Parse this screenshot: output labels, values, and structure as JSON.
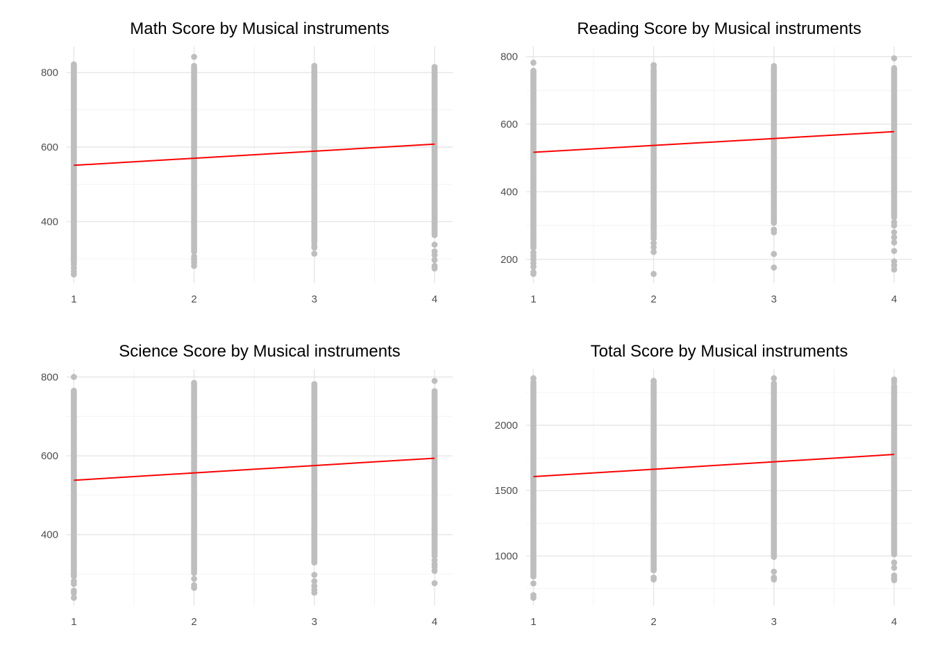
{
  "chart_data": [
    {
      "type": "scatter",
      "title": "Math Score by Musical instruments",
      "xlabel": "",
      "ylabel": "",
      "x_ticks": [
        1,
        2,
        3,
        4
      ],
      "xlim": [
        0.94,
        4.15
      ],
      "y_ticks": [
        400,
        600,
        800
      ],
      "y_minor": [
        300,
        500,
        700
      ],
      "ylim": [
        235,
        870
      ],
      "grid": true,
      "point_color": "#bebebe",
      "line_color": "#ff0000",
      "columns": [
        {
          "x": 1,
          "bands": [
            [
              288,
              812
            ]
          ],
          "outliers": [
            258,
            266,
            275,
            284,
            814,
            818,
            822
          ]
        },
        {
          "x": 2,
          "bands": [
            [
              318,
              808
            ]
          ],
          "outliers": [
            281,
            290,
            298,
            306,
            812,
            818,
            842
          ]
        },
        {
          "x": 3,
          "bands": [
            [
              345,
              806
            ]
          ],
          "outliers": [
            314,
            330,
            336,
            812,
            818
          ]
        },
        {
          "x": 4,
          "bands": [
            [
              360,
              806
            ]
          ],
          "outliers": [
            274,
            281,
            297,
            310,
            320,
            338,
            810,
            815
          ]
        }
      ],
      "fit": {
        "x": [
          1,
          4
        ],
        "y": [
          551,
          608
        ]
      }
    },
    {
      "type": "scatter",
      "title": "Reading Score by Musical instruments",
      "xlabel": "",
      "ylabel": "",
      "x_ticks": [
        1,
        2,
        3,
        4
      ],
      "xlim": [
        0.94,
        4.15
      ],
      "y_ticks": [
        200,
        400,
        600,
        800
      ],
      "y_minor": [
        300,
        500,
        700
      ],
      "ylim": [
        130,
        830
      ],
      "grid": true,
      "point_color": "#bebebe",
      "line_color": "#ff0000",
      "columns": [
        {
          "x": 1,
          "bands": [
            [
              230,
              758
            ]
          ],
          "outliers": [
            157,
            162,
            178,
            189,
            200,
            210,
            220,
            782
          ]
        },
        {
          "x": 2,
          "bands": [
            [
              262,
              760
            ]
          ],
          "outliers": [
            157,
            222,
            236,
            248,
            770,
            775
          ]
        },
        {
          "x": 3,
          "bands": [
            [
              305,
              765
            ]
          ],
          "outliers": [
            176,
            216,
            280,
            288,
            772
          ]
        },
        {
          "x": 4,
          "bands": [
            [
              320,
              766
            ]
          ],
          "outliers": [
            170,
            182,
            194,
            225,
            250,
            265,
            280,
            300,
            310,
            795
          ]
        }
      ],
      "fit": {
        "x": [
          1,
          4
        ],
        "y": [
          517,
          578
        ]
      }
    },
    {
      "type": "scatter",
      "title": "Science Score by Musical instruments",
      "xlabel": "",
      "ylabel": "",
      "x_ticks": [
        1,
        2,
        3,
        4
      ],
      "xlim": [
        0.94,
        4.15
      ],
      "y_ticks": [
        400,
        600,
        800
      ],
      "y_minor": [
        300,
        500,
        700
      ],
      "ylim": [
        220,
        820
      ],
      "grid": true,
      "point_color": "#bebebe",
      "line_color": "#ff0000",
      "columns": [
        {
          "x": 1,
          "bands": [
            [
              290,
              765
            ]
          ],
          "outliers": [
            240,
            252,
            258,
            275,
            282,
            800
          ]
        },
        {
          "x": 2,
          "bands": [
            [
              300,
              778
            ]
          ],
          "outliers": [
            265,
            272,
            288,
            785
          ]
        },
        {
          "x": 3,
          "bands": [
            [
              328,
              778
            ]
          ],
          "outliers": [
            253,
            260,
            270,
            282,
            298,
            782
          ]
        },
        {
          "x": 4,
          "bands": [
            [
              345,
              764
            ]
          ],
          "outliers": [
            277,
            308,
            318,
            325,
            335,
            790
          ]
        }
      ],
      "fit": {
        "x": [
          1,
          4
        ],
        "y": [
          538,
          594
        ]
      }
    },
    {
      "type": "scatter",
      "title": "Total Score by Musical instruments",
      "xlabel": "",
      "ylabel": "",
      "x_ticks": [
        1,
        2,
        3,
        4
      ],
      "xlim": [
        0.94,
        4.15
      ],
      "y_ticks": [
        1000,
        1500,
        2000
      ],
      "y_minor": [
        750,
        1250,
        1750,
        2250
      ],
      "ylim": [
        620,
        2430
      ],
      "grid": true,
      "point_color": "#bebebe",
      "line_color": "#ff0000",
      "columns": [
        {
          "x": 1,
          "bands": [
            [
              840,
              2330
            ]
          ],
          "outliers": [
            680,
            700,
            790,
            2360
          ]
        },
        {
          "x": 2,
          "bands": [
            [
              880,
              2310
            ]
          ],
          "outliers": [
            820,
            835,
            2330,
            2340
          ]
        },
        {
          "x": 3,
          "bands": [
            [
              980,
              2320
            ]
          ],
          "outliers": [
            820,
            835,
            880,
            2360
          ]
        },
        {
          "x": 4,
          "bands": [
            [
              1000,
              2300
            ]
          ],
          "outliers": [
            815,
            830,
            850,
            910,
            950,
            2330,
            2350
          ]
        }
      ],
      "fit": {
        "x": [
          1,
          4
        ],
        "y": [
          1607,
          1777
        ]
      }
    }
  ]
}
